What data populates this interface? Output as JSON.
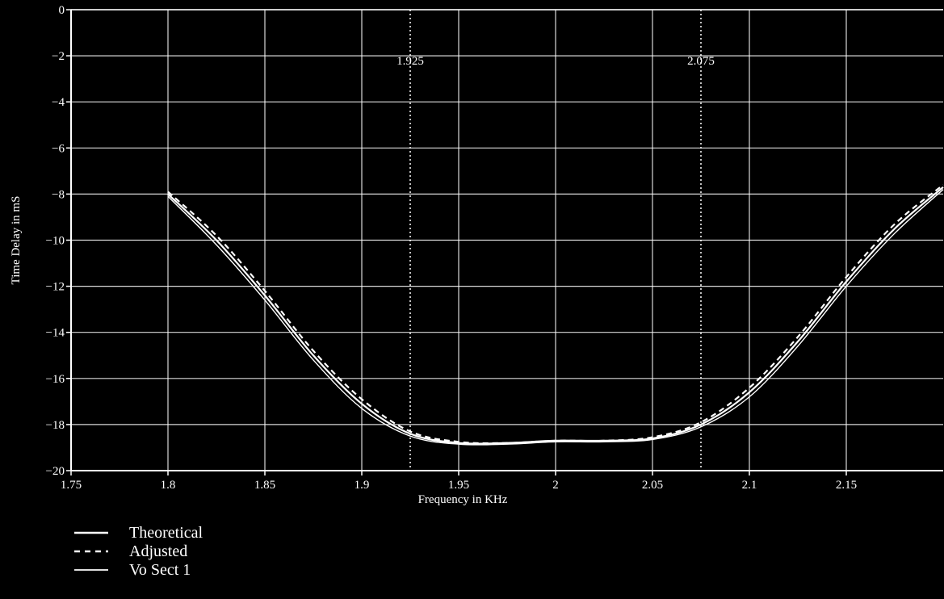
{
  "chart_data": {
    "type": "line",
    "title": "",
    "xlabel": "Frequency in KHz",
    "ylabel": "Time Delay in mS",
    "xlim": [
      1.75,
      2.2
    ],
    "ylim": [
      -20,
      0
    ],
    "xticks": [
      1.75,
      1.8,
      1.85,
      1.9,
      1.95,
      2.0,
      2.05,
      2.1,
      2.15
    ],
    "xtick_labels": [
      "1.75",
      "1.8",
      "1.85",
      "1.9",
      "1.95",
      "2",
      "2.05",
      "2.1",
      "2.15"
    ],
    "yticks": [
      0,
      -2,
      -4,
      -6,
      -8,
      -10,
      -12,
      -14,
      -16,
      -18,
      -20
    ],
    "ytick_labels": [
      "0",
      "−2",
      "−4",
      "−6",
      "−8",
      "−10",
      "−12",
      "−14",
      "−16",
      "−18",
      "−20"
    ],
    "grid": true,
    "background": "#000000",
    "foreground": "#ffffff",
    "vertical_markers": [
      {
        "x": 1.925,
        "label": "1.925"
      },
      {
        "x": 2.075,
        "label": "2.075"
      }
    ],
    "legend_position": "bottom-left",
    "series": [
      {
        "name": "Theoretical",
        "style": "solid",
        "x": [
          1.8,
          1.825,
          1.85,
          1.875,
          1.9,
          1.925,
          1.95,
          1.975,
          2.0,
          2.025,
          2.05,
          2.075,
          2.1,
          2.125,
          2.15,
          2.175,
          2.2
        ],
        "y": [
          -8.0,
          -10.0,
          -12.4,
          -15.0,
          -17.1,
          -18.4,
          -18.8,
          -18.8,
          -18.7,
          -18.7,
          -18.6,
          -18.0,
          -16.6,
          -14.4,
          -11.8,
          -9.5,
          -7.7
        ]
      },
      {
        "name": "Adjusted",
        "style": "dashed",
        "x": [
          1.8,
          1.825,
          1.85,
          1.875,
          1.9,
          1.925,
          1.95,
          1.975,
          2.0,
          2.025,
          2.05,
          2.075,
          2.1,
          2.125,
          2.15,
          2.175,
          2.2
        ],
        "y": [
          -7.9,
          -9.8,
          -12.2,
          -14.8,
          -16.9,
          -18.3,
          -18.75,
          -18.8,
          -18.7,
          -18.7,
          -18.55,
          -17.9,
          -16.4,
          -14.2,
          -11.6,
          -9.3,
          -7.6
        ]
      },
      {
        "name": "Vo Sect 1",
        "style": "thin",
        "x": [
          1.8,
          1.825,
          1.85,
          1.875,
          1.9,
          1.925,
          1.95,
          1.975,
          2.0,
          2.025,
          2.05,
          2.075,
          2.1,
          2.125,
          2.15,
          2.175,
          2.2
        ],
        "y": [
          -8.1,
          -10.2,
          -12.6,
          -15.2,
          -17.3,
          -18.5,
          -18.85,
          -18.85,
          -18.75,
          -18.75,
          -18.65,
          -18.1,
          -16.8,
          -14.6,
          -12.0,
          -9.7,
          -7.8
        ]
      }
    ]
  }
}
